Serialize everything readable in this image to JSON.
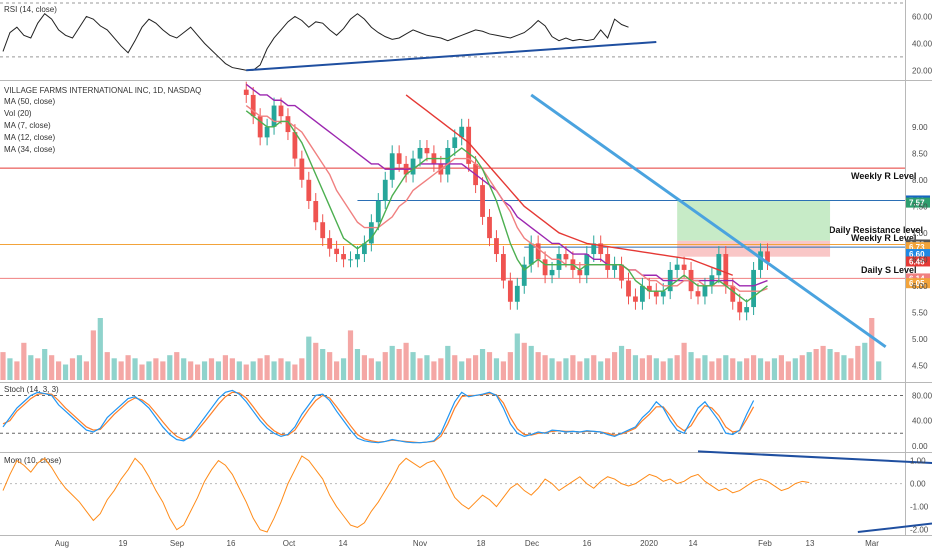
{
  "legends": {
    "rsi": "RSI (14, close)",
    "main_title": "VILLAGE FARMS INTERNATIONAL INC, 1D, NASDAQ",
    "ma50": "MA (50, close)",
    "vol": "Vol (20)",
    "ma7": "MA (7, close)",
    "ma12": "MA (12, close)",
    "ma34": "MA (34, close)",
    "stoch": "Stoch (14, 3, 3)",
    "mom": "Mom (10, close)"
  },
  "annotations": {
    "weekly_r_level_top": "Weekly R Level",
    "daily_resistance_level": "Daily Resistance level",
    "weekly_r_level": "Weekly R Level",
    "daily_s_level": "Daily S Level"
  },
  "x_axis": {
    "labels": [
      "Aug",
      "19",
      "Sep",
      "16",
      "Oct",
      "14",
      "Nov",
      "18",
      "Dec",
      "16",
      "2020",
      "14",
      "Feb",
      "13",
      "Mar"
    ]
  },
  "colors": {
    "up": "#26a69a",
    "down": "#ef5350",
    "ma7": "#4caf50",
    "ma12": "#f08080",
    "ma34": "#9c27b0",
    "ma50": "#e53935",
    "trend_blue": "#4aa3df",
    "trend_dark": "#1f4fa0",
    "stoch_k": "#2196f3",
    "stoch_d": "#ff7f27",
    "mom": "#ff8c1a"
  },
  "chart_data": [
    {
      "type": "line",
      "name": "rsi",
      "title": "RSI (14, close)",
      "ylim": [
        15,
        70
      ],
      "yticks": [
        "60.00",
        "40.00",
        "20.00"
      ],
      "y": [
        34,
        48,
        52,
        46,
        44,
        55,
        62,
        58,
        50,
        46,
        44,
        52,
        60,
        58,
        53,
        50,
        44,
        38,
        33,
        42,
        52,
        58,
        55,
        50,
        46,
        44,
        48,
        52,
        46,
        40,
        35,
        30,
        25,
        22,
        21,
        20,
        20,
        24,
        36,
        44,
        50,
        56,
        60,
        57,
        52,
        56,
        55,
        50,
        46,
        51,
        58,
        62,
        58,
        52,
        48,
        45,
        43,
        44,
        47,
        50,
        48,
        46,
        45,
        44,
        42,
        44,
        46,
        48,
        50,
        49,
        47,
        46,
        45,
        44,
        46,
        48,
        52,
        57,
        53,
        45,
        42,
        44,
        42,
        43,
        42,
        43,
        50,
        44,
        58,
        54,
        52
      ],
      "trendline": [
        {
          "x": 35,
          "y": 20
        },
        {
          "x": 94,
          "y": 41
        }
      ]
    },
    {
      "type": "candlestick",
      "name": "price",
      "title": "VILLAGE FARMS INTERNATIONAL INC, 1D, NASDAQ",
      "ylim": [
        4.3,
        9.75
      ],
      "yticks": [
        "9.00",
        "8.50",
        "8.00",
        "7.50",
        "7.00",
        "6.50",
        "6.00",
        "5.50",
        "5.00",
        "4.50"
      ],
      "x_first_visible": 35,
      "close": [
        9.6,
        9.2,
        8.8,
        9.0,
        9.4,
        9.2,
        8.9,
        8.4,
        8.0,
        7.6,
        7.2,
        6.9,
        6.7,
        6.6,
        6.5,
        6.5,
        6.6,
        6.8,
        7.2,
        7.6,
        8.0,
        8.5,
        8.3,
        8.1,
        8.4,
        8.6,
        8.5,
        8.3,
        8.1,
        8.6,
        8.8,
        9.0,
        8.3,
        7.9,
        7.3,
        6.9,
        6.6,
        6.1,
        5.7,
        6.0,
        6.4,
        6.8,
        6.5,
        6.2,
        6.3,
        6.6,
        6.5,
        6.3,
        6.2,
        6.6,
        6.8,
        6.6,
        6.3,
        6.4,
        6.1,
        5.8,
        5.7,
        6.0,
        5.9,
        5.8,
        5.9,
        6.3,
        6.4,
        6.3,
        5.9,
        5.8,
        6.0,
        6.2,
        6.6,
        6.0,
        5.7,
        5.5,
        5.6,
        6.3,
        6.65,
        6.45
      ],
      "ma7": [
        9.3,
        9.2,
        9.1,
        9.0,
        9.0,
        9.1,
        9.1,
        8.9,
        8.7,
        8.4,
        8.1,
        7.8,
        7.5,
        7.2,
        6.9,
        6.8,
        6.7,
        6.8,
        6.9,
        7.1,
        7.4,
        7.7,
        7.9,
        8.1,
        8.2,
        8.3,
        8.4,
        8.4,
        8.4,
        8.4,
        8.5,
        8.6,
        8.5,
        8.4,
        8.2,
        7.9,
        7.6,
        7.2,
        6.8,
        6.5,
        6.3,
        6.4,
        6.5,
        6.4,
        6.4,
        6.4,
        6.4,
        6.4,
        6.3,
        6.4,
        6.4,
        6.4,
        6.4,
        6.4,
        6.4,
        6.3,
        6.1,
        6.0,
        5.9,
        5.9,
        5.9,
        6.0,
        6.1,
        6.2,
        6.1,
        6.0,
        6.0,
        6.0,
        6.1,
        6.0,
        5.9,
        5.8,
        5.7,
        5.8,
        5.9,
        6.0
      ],
      "ma12": [
        9.4,
        9.3,
        9.2,
        9.2,
        9.1,
        9.1,
        9.1,
        9.0,
        8.9,
        8.7,
        8.5,
        8.3,
        8.1,
        7.8,
        7.6,
        7.4,
        7.2,
        7.1,
        7.1,
        7.1,
        7.2,
        7.3,
        7.5,
        7.6,
        7.8,
        7.9,
        8.0,
        8.1,
        8.2,
        8.3,
        8.4,
        8.4,
        8.4,
        8.3,
        8.2,
        8.0,
        7.8,
        7.6,
        7.4,
        7.1,
        6.9,
        6.8,
        6.7,
        6.6,
        6.5,
        6.5,
        6.4,
        6.4,
        6.4,
        6.4,
        6.4,
        6.4,
        6.4,
        6.4,
        6.4,
        6.3,
        6.3,
        6.2,
        6.1,
        6.1,
        6.0,
        6.0,
        6.0,
        6.1,
        6.1,
        6.1,
        6.0,
        6.0,
        6.0,
        6.0,
        6.0,
        5.9,
        5.9,
        5.9,
        5.9,
        5.95
      ],
      "ma34": [
        9.8,
        9.7,
        9.6,
        9.6,
        9.5,
        9.5,
        9.4,
        9.4,
        9.3,
        9.2,
        9.1,
        9.0,
        8.9,
        8.8,
        8.7,
        8.6,
        8.5,
        8.4,
        8.3,
        8.3,
        8.2,
        8.2,
        8.2,
        8.2,
        8.2,
        8.3,
        8.3,
        8.3,
        8.3,
        8.3,
        8.3,
        8.3,
        8.2,
        8.1,
        8.0,
        7.9,
        7.8,
        7.6,
        7.5,
        7.3,
        7.2,
        7.1,
        7.0,
        6.9,
        6.8,
        6.8,
        6.7,
        6.6,
        6.6,
        6.6,
        6.5,
        6.5,
        6.4,
        6.4,
        6.4,
        6.3,
        6.3,
        6.2,
        6.2,
        6.2,
        6.1,
        6.1,
        6.1,
        6.1,
        6.1,
        6.1,
        6.1,
        6.1,
        6.1,
        6.1,
        6.1,
        6.0,
        6.0,
        6.0,
        6.05,
        6.1
      ],
      "ma50": [
        null,
        null,
        null,
        null,
        null,
        null,
        null,
        null,
        null,
        null,
        null,
        null,
        null,
        null,
        null,
        null,
        null,
        null,
        null,
        null,
        null,
        null,
        null,
        9.6,
        9.5,
        9.4,
        9.3,
        9.2,
        9.1,
        9.0,
        8.9,
        8.8,
        8.7,
        8.55,
        8.4,
        8.25,
        8.1,
        7.95,
        7.8,
        7.65,
        7.5,
        7.4,
        7.3,
        7.2,
        7.1,
        7.0,
        6.95,
        6.9,
        6.85,
        6.8,
        6.78,
        6.76,
        6.74,
        6.72,
        6.7,
        6.68,
        6.66,
        6.64,
        6.62,
        6.6,
        6.58,
        6.56,
        6.54,
        6.52,
        6.5,
        6.45,
        6.4,
        6.35,
        6.3,
        6.25,
        6.2
      ],
      "levels": [
        {
          "label": "Weekly R Level",
          "value": 7.61,
          "tag": "7.61"
        },
        {
          "label": "Daily Resistance level",
          "value": 6.78,
          "tag": "6.78"
        },
        {
          "label": "Weekly R Level",
          "value": 6.73,
          "tag": "6.73"
        },
        {
          "label": "Daily S Level",
          "value": 6.14,
          "tag": "6.14"
        }
      ],
      "price_tags": [
        "7.61",
        "7.57",
        "6.78",
        "6.73",
        "6.60",
        "6.46",
        "6.14",
        "6.05"
      ],
      "red_line": 8.22,
      "zone_green": [
        6.85,
        7.61
      ],
      "zone_red": [
        6.55,
        6.85
      ],
      "trendline_blue": [
        {
          "x": 76,
          "y": 9.6
        },
        {
          "x": 127,
          "y": 4.85
        }
      ]
    },
    {
      "type": "bar",
      "name": "volume",
      "title": "Vol (20)",
      "values": [
        0.45,
        0.35,
        0.3,
        0.6,
        0.4,
        0.35,
        0.5,
        0.4,
        0.3,
        0.25,
        0.35,
        0.4,
        0.3,
        0.8,
        1.0,
        0.45,
        0.35,
        0.3,
        0.4,
        0.35,
        0.25,
        0.3,
        0.35,
        0.3,
        0.4,
        0.45,
        0.35,
        0.3,
        0.25,
        0.3,
        0.35,
        0.3,
        0.4,
        0.35,
        0.3,
        0.25,
        0.3,
        0.35,
        0.4,
        0.3,
        0.35,
        0.3,
        0.25,
        0.35,
        0.7,
        0.6,
        0.5,
        0.45,
        0.3,
        0.35,
        0.8,
        0.5,
        0.4,
        0.35,
        0.3,
        0.45,
        0.55,
        0.5,
        0.6,
        0.45,
        0.35,
        0.4,
        0.3,
        0.35,
        0.55,
        0.4,
        0.3,
        0.35,
        0.4,
        0.5,
        0.45,
        0.35,
        0.3,
        0.45,
        0.75,
        0.6,
        0.55,
        0.45,
        0.4,
        0.35,
        0.3,
        0.35,
        0.4,
        0.3,
        0.35,
        0.4,
        0.3,
        0.35,
        0.45,
        0.55,
        0.5,
        0.4,
        0.35,
        0.4,
        0.35,
        0.3,
        0.35,
        0.4,
        0.6,
        0.45,
        0.35,
        0.4,
        0.3,
        0.35,
        0.4,
        0.35,
        0.3,
        0.35,
        0.4,
        0.35,
        0.3,
        0.35,
        0.4,
        0.3,
        0.35,
        0.4,
        0.45,
        0.5,
        0.55,
        0.5,
        0.45,
        0.4,
        0.35,
        0.55,
        0.6,
        1.0,
        0.3
      ]
    },
    {
      "type": "line",
      "name": "stoch",
      "title": "Stoch (14, 3, 3)",
      "ylim": [
        -5,
        95
      ],
      "yticks": [
        "80.00",
        "40.00",
        "0.00"
      ],
      "k": [
        30,
        45,
        60,
        70,
        80,
        85,
        83,
        80,
        65,
        55,
        45,
        35,
        25,
        22,
        28,
        45,
        55,
        65,
        75,
        78,
        70,
        60,
        45,
        30,
        18,
        10,
        8,
        15,
        30,
        45,
        60,
        75,
        85,
        88,
        82,
        70,
        55,
        40,
        28,
        20,
        15,
        18,
        30,
        50,
        65,
        80,
        82,
        72,
        55,
        40,
        25,
        12,
        8,
        6,
        5,
        7,
        10,
        8,
        6,
        5,
        5,
        6,
        8,
        20,
        45,
        70,
        85,
        78,
        80,
        82,
        85,
        80,
        60,
        35,
        20,
        15,
        18,
        22,
        20,
        25,
        24,
        22,
        23,
        22,
        24,
        23,
        22,
        18,
        15,
        20,
        25,
        30,
        45,
        55,
        70,
        60,
        40,
        25,
        20,
        40,
        60,
        70,
        55,
        40,
        20,
        18,
        25,
        50,
        72
      ],
      "d": [
        35,
        40,
        55,
        65,
        75,
        82,
        83,
        82,
        72,
        60,
        50,
        40,
        30,
        25,
        26,
        38,
        50,
        60,
        70,
        76,
        73,
        65,
        52,
        38,
        25,
        15,
        10,
        13,
        25,
        38,
        52,
        66,
        78,
        85,
        84,
        76,
        62,
        47,
        34,
        24,
        18,
        17,
        25,
        42,
        58,
        72,
        80,
        76,
        62,
        47,
        32,
        18,
        11,
        8,
        6,
        7,
        9,
        8,
        7,
        6,
        5,
        6,
        7,
        15,
        35,
        60,
        78,
        80,
        80,
        81,
        83,
        81,
        68,
        45,
        27,
        18,
        17,
        20,
        21,
        23,
        24,
        23,
        23,
        22,
        23,
        23,
        22,
        20,
        17,
        19,
        23,
        28,
        40,
        50,
        62,
        62,
        48,
        32,
        24,
        32,
        50,
        64,
        60,
        48,
        30,
        22,
        24,
        42,
        62
      ]
    },
    {
      "type": "line",
      "name": "momentum",
      "title": "Mom (10, close)",
      "ylim": [
        -2.1,
        1.2
      ],
      "yticks": [
        "1.00",
        "0.00",
        "-1.00",
        "-2.00"
      ],
      "y": [
        -0.3,
        0.4,
        1.0,
        0.8,
        0.5,
        0.9,
        1.1,
        0.7,
        0.2,
        -0.2,
        -0.5,
        -0.8,
        -1.2,
        -1.6,
        -1.3,
        -0.7,
        -0.3,
        0.2,
        0.6,
        1.1,
        0.8,
        0.3,
        -0.3,
        -0.8,
        -1.5,
        -2.0,
        -1.8,
        -1.2,
        -0.6,
        0.1,
        0.6,
        1.0,
        0.8,
        0.4,
        -0.2,
        -0.8,
        -1.5,
        -2.0,
        -2.1,
        -1.5,
        -0.8,
        0.0,
        0.6,
        1.2,
        1.0,
        0.6,
        0.2,
        -0.5,
        -1.0,
        -1.4,
        -1.8,
        -1.9,
        -1.7,
        -1.2,
        -0.8,
        -0.3,
        0.2,
        0.8,
        1.1,
        0.9,
        0.7,
        0.9,
        1.0,
        0.6,
        0.0,
        -0.6,
        -0.9,
        -1.1,
        -0.8,
        -0.5,
        -0.7,
        -1.0,
        -0.6,
        -0.2,
        0.0,
        -0.3,
        -0.5,
        -0.2,
        0.2,
        0.0,
        -0.3,
        -0.1,
        0.1,
        0.3,
        0.0,
        -0.2,
        0.1,
        0.3,
        0.2,
        0.0,
        -0.1,
        0.0,
        0.2,
        0.4,
        0.3,
        0.1,
        0.2,
        0.0,
        0.1,
        0.3,
        0.4,
        0.1,
        -0.1,
        -0.3,
        -0.2,
        -0.4,
        -0.3,
        -0.1,
        0.1,
        0.2,
        0.1,
        -0.1,
        -0.3,
        -0.2,
        0.0,
        0.1,
        0.05
      ],
      "triangle": [
        {
          "x": 100,
          "y": 1.4
        },
        {
          "x": 187,
          "y": 0.1
        },
        {
          "x": 123,
          "y": -2.15
        }
      ]
    }
  ]
}
